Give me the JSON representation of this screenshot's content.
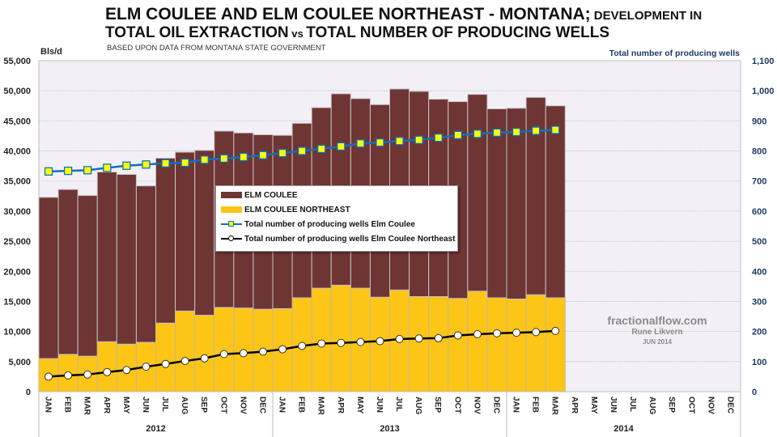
{
  "header": {
    "title_line1_main": "ELM COULEE AND ELM COULEE NORTHEAST - MONTANA;",
    "title_line1_small": " DEVELOPMENT IN",
    "title_line2_a": "TOTAL OIL EXTRACTION",
    "title_line2_vs": " vs ",
    "title_line2_b": "TOTAL NUMBER OF PRODUCING WELLS",
    "subtitle": "BASED UPON DATA FROM MONTANA STATE GOVERNMENT"
  },
  "watermark": {
    "site": "fractionalflow.com",
    "author": "Rune Likvern",
    "date": "JUN 2014"
  },
  "colors": {
    "elm_coulee": "#6e3535",
    "elm_coulee_ne": "#fdc516",
    "wells_ec_line": "#1170c0",
    "wells_ec_marker": "#ffff00",
    "wells_ne_line": "#000000",
    "wells_ne_marker": "#ffffff",
    "plot_bg": "#f2f0f6",
    "right_axis_text": "#1f3864"
  },
  "chart_data": {
    "type": "bar",
    "subtype": "stacked bar with dual-axis lines",
    "title": "ELM COULEE AND ELM COULEE NORTHEAST - MONTANA; DEVELOPMENT IN TOTAL OIL EXTRACTION vs TOTAL NUMBER OF PRODUCING WELLS",
    "subtitle": "BASED UPON DATA FROM MONTANA STATE GOVERNMENT",
    "ylabel": "Bls/d",
    "ylabel_right": "Total number of producing wells",
    "ylim": [
      0,
      55000
    ],
    "ylim_right": [
      0,
      1100
    ],
    "yticks": [
      "0",
      "5,000",
      "10,000",
      "15,000",
      "20,000",
      "25,000",
      "30,000",
      "35,000",
      "40,000",
      "45,000",
      "50,000",
      "55,000"
    ],
    "yticks_right": [
      "0",
      "100",
      "200",
      "300",
      "400",
      "500",
      "600",
      "700",
      "800",
      "900",
      "1,000",
      "1,100"
    ],
    "grid": true,
    "categories": [
      "JAN",
      "FEB",
      "MAR",
      "APR",
      "MAY",
      "JUN",
      "JUL",
      "AUG",
      "SEP",
      "OCT",
      "NOV",
      "DEC",
      "JAN",
      "FEB",
      "MAR",
      "APR",
      "MAY",
      "JUN",
      "JUL",
      "AUG",
      "SEP",
      "OCT",
      "NOV",
      "DEC",
      "JAN",
      "FEB",
      "MAR",
      "APR",
      "MAY",
      "JUN",
      "JUL",
      "AUG",
      "SEP",
      "OCT",
      "NOV",
      "DEC"
    ],
    "years": [
      {
        "label": "2012",
        "months": 12
      },
      {
        "label": "2013",
        "months": 12
      },
      {
        "label": "2014",
        "months": 12
      }
    ],
    "series": [
      {
        "name": "ELM COULEE NORTHEAST",
        "type": "bar",
        "axis": "left",
        "stack_order": 0,
        "values": [
          5500,
          6200,
          5900,
          8300,
          7900,
          8200,
          11400,
          13400,
          12700,
          14000,
          13900,
          13700,
          13800,
          15600,
          17200,
          17700,
          17200,
          15700,
          16900,
          15800,
          15800,
          15500,
          16700,
          15600,
          15400,
          16100,
          15600,
          null,
          null,
          null,
          null,
          null,
          null,
          null,
          null,
          null
        ]
      },
      {
        "name": "ELM COULEE",
        "type": "bar",
        "axis": "left",
        "stack_order": 1,
        "values": [
          26800,
          27400,
          26700,
          28200,
          28200,
          26000,
          27400,
          26400,
          27400,
          29300,
          29100,
          29000,
          28800,
          29000,
          30000,
          31800,
          31500,
          32000,
          33400,
          34100,
          32800,
          32700,
          32700,
          31400,
          31700,
          32800,
          31900,
          null,
          null,
          null,
          null,
          null,
          null,
          null,
          null,
          null
        ]
      },
      {
        "name": "Total number of producing wells Elm Coulee",
        "type": "line",
        "axis": "right",
        "values": [
          732,
          734,
          736,
          744,
          751,
          755,
          759,
          761,
          771,
          775,
          780,
          786,
          793,
          800,
          807,
          815,
          825,
          828,
          833,
          837,
          844,
          853,
          857,
          861,
          863,
          867,
          870,
          null,
          null,
          null,
          null,
          null,
          null,
          null,
          null,
          null
        ]
      },
      {
        "name": "Total number of producing wells Elm Coulee Northeast",
        "type": "line",
        "axis": "right",
        "values": [
          50,
          54,
          57,
          65,
          72,
          83,
          92,
          102,
          111,
          125,
          128,
          133,
          141,
          152,
          160,
          162,
          165,
          168,
          175,
          177,
          178,
          187,
          191,
          194,
          196,
          198,
          202,
          null,
          null,
          null,
          null,
          null,
          null,
          null,
          null,
          null
        ]
      }
    ],
    "legend": {
      "position": "center-left",
      "entries": [
        "ELM COULEE",
        "ELM COULEE NORTHEAST",
        "Total number of producing wells Elm Coulee",
        "Total number of producing wells Elm Coulee Northeast"
      ]
    }
  }
}
